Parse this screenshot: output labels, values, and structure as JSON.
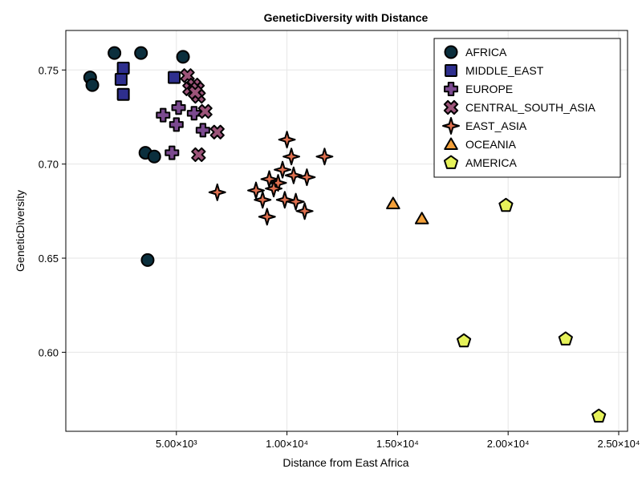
{
  "chart_data": {
    "type": "scatter",
    "title": "GeneticDiversity with Distance",
    "xlabel": "Distance from East Africa",
    "ylabel": "GeneticDiversity",
    "xlim": [
      0,
      25400
    ],
    "ylim": [
      0.558,
      0.771
    ],
    "x_ticks": [
      {
        "value": 5000,
        "label": "5.00×10³"
      },
      {
        "value": 10000,
        "label": "1.00×10⁴"
      },
      {
        "value": 15000,
        "label": "1.50×10⁴"
      },
      {
        "value": 20000,
        "label": "2.00×10⁴"
      },
      {
        "value": 25000,
        "label": "2.50×10⁴"
      }
    ],
    "y_ticks": [
      {
        "value": 0.6,
        "label": "0.60"
      },
      {
        "value": 0.65,
        "label": "0.65"
      },
      {
        "value": 0.7,
        "label": "0.70"
      },
      {
        "value": 0.75,
        "label": "0.75"
      }
    ],
    "grid": true,
    "legend_position": "top-right",
    "series": [
      {
        "name": "AFRICA",
        "marker": "circle",
        "color": "#0b2f3d",
        "points": [
          [
            1100,
            0.746
          ],
          [
            1200,
            0.742
          ],
          [
            2200,
            0.759
          ],
          [
            3400,
            0.759
          ],
          [
            5300,
            0.757
          ],
          [
            3600,
            0.706
          ],
          [
            4000,
            0.704
          ],
          [
            3700,
            0.649
          ]
        ]
      },
      {
        "name": "MIDDLE_EAST",
        "marker": "square",
        "color": "#2e2f8e",
        "points": [
          [
            2600,
            0.751
          ],
          [
            2500,
            0.745
          ],
          [
            2600,
            0.737
          ],
          [
            4900,
            0.746
          ]
        ]
      },
      {
        "name": "EUROPE",
        "marker": "cross",
        "color": "#7b4a8f",
        "points": [
          [
            5100,
            0.73
          ],
          [
            4400,
            0.726
          ],
          [
            5000,
            0.721
          ],
          [
            4800,
            0.706
          ],
          [
            6200,
            0.718
          ],
          [
            5800,
            0.727
          ]
        ]
      },
      {
        "name": "CENTRAL_SOUTH_ASIA",
        "marker": "x",
        "color": "#9c5479",
        "points": [
          [
            5500,
            0.747
          ],
          [
            5600,
            0.74
          ],
          [
            5800,
            0.742
          ],
          [
            5950,
            0.74
          ],
          [
            6000,
            0.736
          ],
          [
            6300,
            0.728
          ],
          [
            6000,
            0.705
          ],
          [
            6850,
            0.717
          ],
          [
            5850,
            0.738
          ]
        ]
      },
      {
        "name": "EAST_ASIA",
        "marker": "star4",
        "color": "#e0704f",
        "points": [
          [
            6850,
            0.685
          ],
          [
            8600,
            0.686
          ],
          [
            8900,
            0.681
          ],
          [
            9200,
            0.692
          ],
          [
            9600,
            0.69
          ],
          [
            9800,
            0.697
          ],
          [
            9900,
            0.681
          ],
          [
            10000,
            0.713
          ],
          [
            10200,
            0.704
          ],
          [
            10300,
            0.694
          ],
          [
            10400,
            0.68
          ],
          [
            10800,
            0.675
          ],
          [
            10900,
            0.693
          ],
          [
            9100,
            0.672
          ],
          [
            11700,
            0.704
          ],
          [
            9400,
            0.687
          ]
        ]
      },
      {
        "name": "OCEANIA",
        "marker": "triangle",
        "color": "#f3a03a",
        "points": [
          [
            14800,
            0.679
          ],
          [
            16100,
            0.671
          ]
        ]
      },
      {
        "name": "AMERICA",
        "marker": "pentagon",
        "color": "#e6f25a",
        "points": [
          [
            18000,
            0.606
          ],
          [
            19900,
            0.678
          ],
          [
            22600,
            0.607
          ],
          [
            24100,
            0.566
          ]
        ]
      }
    ]
  }
}
